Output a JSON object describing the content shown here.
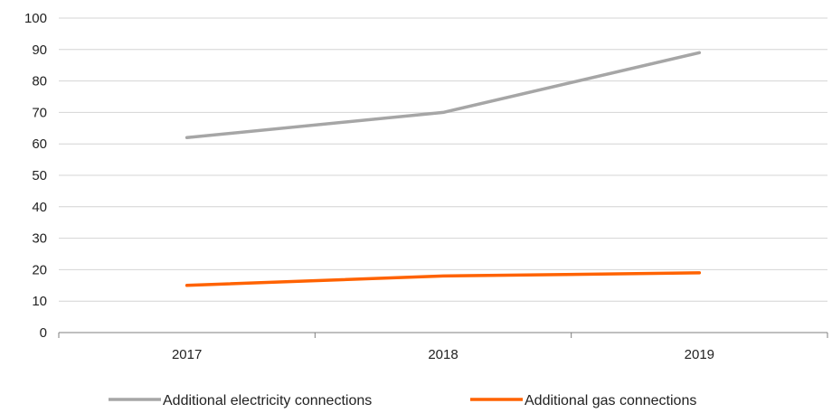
{
  "chart_data": {
    "type": "line",
    "categories": [
      "2017",
      "2018",
      "2019"
    ],
    "series": [
      {
        "name": "Additional electricity connections",
        "values": [
          62,
          70,
          89
        ],
        "color": "#a6a6a6"
      },
      {
        "name": "Additional gas connections",
        "values": [
          15,
          18,
          19
        ],
        "color": "#ff6200"
      }
    ],
    "ylim": [
      0,
      100
    ],
    "yticks": [
      0,
      10,
      20,
      30,
      40,
      50,
      60,
      70,
      80,
      90,
      100
    ],
    "grid": "horizontal",
    "legend": "bottom"
  }
}
